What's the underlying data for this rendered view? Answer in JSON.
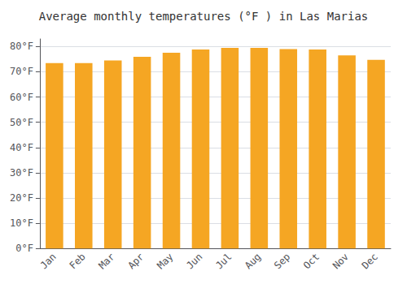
{
  "chart_data": {
    "type": "bar",
    "title": "Average monthly temperatures (°F ) in Las Marias",
    "categories": [
      "Jan",
      "Feb",
      "Mar",
      "Apr",
      "May",
      "Jun",
      "Jul",
      "Aug",
      "Sep",
      "Oct",
      "Nov",
      "Dec"
    ],
    "values": [
      73.4,
      73.4,
      74.5,
      75.9,
      77.5,
      78.8,
      79.5,
      79.5,
      79.0,
      78.8,
      76.5,
      74.7
    ],
    "color": "#F5A623",
    "ylim": [
      0,
      83
    ],
    "yticks": [
      {
        "value": 0,
        "label": "0°F"
      },
      {
        "value": 10,
        "label": "10°F"
      },
      {
        "value": 20,
        "label": "20°F"
      },
      {
        "value": 30,
        "label": "30°F"
      },
      {
        "value": 40,
        "label": "40°F"
      },
      {
        "value": 50,
        "label": "50°F"
      },
      {
        "value": 60,
        "label": "60°F"
      },
      {
        "value": 70,
        "label": "70°F"
      },
      {
        "value": 80,
        "label": "80°F"
      }
    ],
    "grid": true
  }
}
